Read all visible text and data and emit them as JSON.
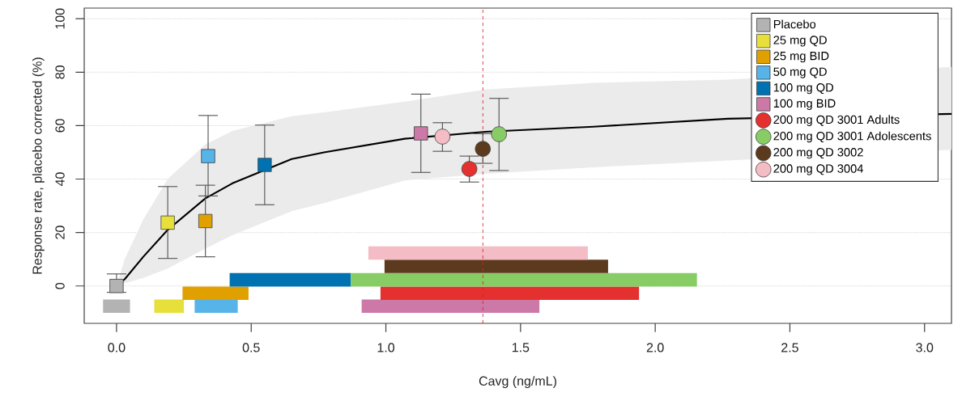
{
  "chart_data": {
    "type": "scatter",
    "xlabel": "Cavg (ng/mL)",
    "ylabel": "Response rate, placebo corrected (%)",
    "xlim": [
      -0.12,
      3.1
    ],
    "ylim": [
      -14,
      104
    ],
    "xticks": [
      {
        "value": 0,
        "label": "0.0"
      },
      {
        "value": 0.5,
        "label": "0.5"
      },
      {
        "value": 1,
        "label": "1.0"
      },
      {
        "value": 1.5,
        "label": "1.5"
      },
      {
        "value": 2,
        "label": "2.0"
      },
      {
        "value": 2.5,
        "label": "2.5"
      },
      {
        "value": 3,
        "label": "3.0"
      }
    ],
    "yticks": [
      0,
      20,
      40,
      60,
      80,
      100
    ],
    "grid": "y",
    "legend": "top right",
    "ref_lines": [
      {
        "axis": "x",
        "value": 1.36,
        "color": "#e02020",
        "line_style": "dashed"
      }
    ],
    "series": [
      {
        "type": "line",
        "color": "#000000",
        "x": [
          0,
          0.03,
          0.1,
          0.19,
          0.33,
          0.43,
          0.65,
          0.77,
          1.07,
          1.37,
          1.77,
          2.27,
          3.1
        ],
        "values": [
          0,
          2.5,
          11,
          21,
          32.8,
          38.4,
          47.5,
          50,
          55.1,
          57.7,
          59.6,
          62.6,
          64.4
        ],
        "lower": [
          0,
          1,
          3,
          6.5,
          14,
          19,
          28,
          31,
          39.5,
          42,
          44.4,
          47,
          51
        ],
        "upper": [
          0,
          10,
          25,
          40,
          53,
          58,
          63.5,
          65,
          69,
          73.5,
          76,
          77.2,
          82
        ]
      },
      {
        "type": "line",
        "color": "#b3b3b3",
        "x": [
          -0.05,
          0.05
        ],
        "values": [
          -7.6,
          -7.6
        ]
      },
      {
        "type": "line",
        "color": "#e8e03a",
        "x": [
          0.14,
          0.25
        ],
        "values": [
          -7.6,
          -7.6
        ]
      },
      {
        "type": "line",
        "color": "#56b4e9",
        "x": [
          0.29,
          0.45
        ],
        "values": [
          -7.6,
          -7.6
        ]
      },
      {
        "type": "line",
        "color": "#e0a000",
        "x": [
          0.245,
          0.49
        ],
        "values": [
          -2.7,
          -2.7
        ]
      },
      {
        "type": "line",
        "color": "#0072b2",
        "x": [
          0.42,
          0.87
        ],
        "values": [
          2.3,
          2.3
        ]
      },
      {
        "type": "line",
        "color": "#cc79a7",
        "x": [
          0.91,
          1.57
        ],
        "values": [
          -7.6,
          -7.6
        ]
      },
      {
        "type": "line",
        "color": "#e53030",
        "x": [
          0.98,
          1.94
        ],
        "values": [
          -2.7,
          -2.7
        ]
      },
      {
        "type": "line",
        "color": "#88cc66",
        "x": [
          0.87,
          2.155
        ],
        "values": [
          2.3,
          2.3
        ]
      },
      {
        "type": "line",
        "color": "#5c3a1e",
        "x": [
          0.995,
          1.825
        ],
        "values": [
          7.3,
          7.3
        ]
      },
      {
        "type": "line",
        "color": "#f4bcc4",
        "x": [
          0.935,
          1.75
        ],
        "values": [
          12.3,
          12.3
        ]
      },
      {
        "name": "Placebo",
        "marker": "square",
        "color": "#b3b3b3",
        "x": [
          0.0
        ],
        "values": [
          0
        ],
        "errors": [
          [
            -2.4,
            4.5
          ]
        ]
      },
      {
        "name": "25 mg QD",
        "marker": "square",
        "color": "#e8e03a",
        "x": [
          0.19
        ],
        "values": [
          23.7
        ],
        "errors": [
          [
            10.3,
            37.2
          ]
        ]
      },
      {
        "name": "25 mg BID",
        "marker": "square",
        "color": "#e0a000",
        "x": [
          0.33
        ],
        "values": [
          24.3
        ],
        "errors": [
          [
            10.9,
            37.7
          ]
        ]
      },
      {
        "name": "50 mg QD",
        "marker": "square",
        "color": "#56b4e9",
        "x": [
          0.34
        ],
        "values": [
          48.6
        ],
        "errors": [
          [
            33.7,
            63.8
          ]
        ]
      },
      {
        "name": "100 mg QD",
        "marker": "square",
        "color": "#0072b2",
        "x": [
          0.55
        ],
        "values": [
          45.3
        ],
        "errors": [
          [
            30.4,
            60.2
          ]
        ]
      },
      {
        "name": "100 mg BID",
        "marker": "square",
        "color": "#cc79a7",
        "x": [
          1.13
        ],
        "values": [
          57.1
        ],
        "errors": [
          [
            42.5,
            71.8
          ]
        ]
      },
      {
        "name": "200 mg QD 3001 Adults",
        "marker": "circle",
        "color": "#e53030",
        "x": [
          1.31
        ],
        "values": [
          43.8
        ],
        "errors": [
          [
            38.9,
            48.6
          ]
        ]
      },
      {
        "name": "200 mg QD 3001 Adolescents",
        "marker": "circle",
        "color": "#88cc66",
        "x": [
          1.42
        ],
        "values": [
          56.8
        ],
        "errors": [
          [
            43.2,
            70.2
          ]
        ]
      },
      {
        "name": "200 mg QD 3002",
        "marker": "circle",
        "color": "#5c3a1e",
        "x": [
          1.36
        ],
        "values": [
          51.3
        ],
        "errors": [
          [
            45.9,
            57
          ]
        ]
      },
      {
        "name": "200 mg QD 3004",
        "marker": "circle",
        "color": "#f4bcc4",
        "x": [
          1.21
        ],
        "values": [
          55.9
        ],
        "errors": [
          [
            50.4,
            61.1
          ]
        ]
      }
    ]
  }
}
